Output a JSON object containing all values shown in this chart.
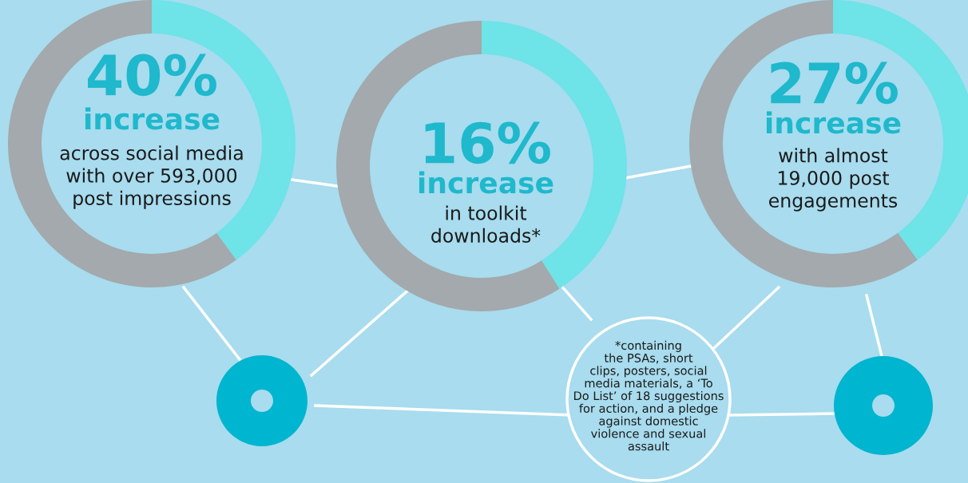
{
  "chart_data": [
    {
      "type": "donut",
      "categories": [
        null,
        null
      ],
      "values": [
        40,
        60
      ],
      "colors": [
        "#6ee3e8",
        "#a3a9ac"
      ],
      "annotations": [
        "40%",
        "increase",
        "across social media\nwith over 593,000\npost impressions"
      ]
    },
    {
      "type": "donut",
      "categories": [
        null,
        null
      ],
      "values": [
        41,
        59
      ],
      "colors": [
        "#6ee3e8",
        "#a3a9ac"
      ],
      "annotations": [
        "16%",
        "increase",
        "in toolkit\ndownloads*",
        "*containing\nthe PSAs, short\nclips, posters, social\nmedia materials, a ‘To\nDo List’ of 18 suggestions\nfor action, and a pledge\nagainst domestic\nviolence and sexual\nassault"
      ]
    },
    {
      "type": "donut",
      "categories": [
        null,
        null
      ],
      "values": [
        40,
        60
      ],
      "colors": [
        "#6ee3e8",
        "#a3a9ac"
      ],
      "annotations": [
        "27%",
        "increase",
        "with almost\n19,000 post\nengagements"
      ]
    }
  ]
}
